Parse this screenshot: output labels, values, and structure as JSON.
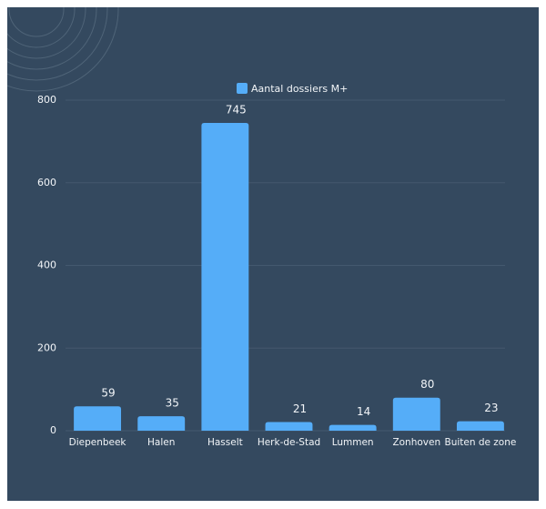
{
  "chart_data": {
    "type": "bar",
    "categories": [
      "Diepenbeek",
      "Halen",
      "Hasselt",
      "Herk-de-Stad",
      "Lummen",
      "Zonhoven",
      "Buiten de zone"
    ],
    "series": [
      {
        "name": "Aantal dossiers M+",
        "color": "#55adf8",
        "values": [
          59,
          35,
          745,
          21,
          14,
          80,
          23
        ]
      }
    ],
    "ylim": [
      0,
      800
    ],
    "yticks": [
      0,
      200,
      400,
      600,
      800
    ],
    "grid": true,
    "legend": "top"
  }
}
